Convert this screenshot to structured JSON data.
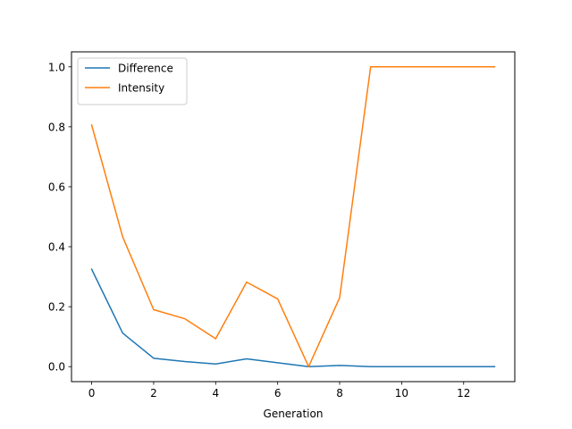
{
  "chart_data": {
    "type": "line",
    "title": "",
    "xlabel": "Generation",
    "ylabel": "",
    "x": [
      0,
      1,
      2,
      3,
      4,
      5,
      6,
      7,
      8,
      9,
      10,
      11,
      12,
      13
    ],
    "xlim": [
      -0.65,
      13.65
    ],
    "ylim": [
      -0.05,
      1.05
    ],
    "x_ticks": [
      0,
      2,
      4,
      6,
      8,
      10,
      12
    ],
    "y_ticks": [
      0.0,
      0.2,
      0.4,
      0.6,
      0.8,
      1.0
    ],
    "x_tick_labels": [
      "0",
      "2",
      "4",
      "6",
      "8",
      "10",
      "12"
    ],
    "y_tick_labels": [
      "0.0",
      "0.2",
      "0.4",
      "0.6",
      "0.8",
      "1.0"
    ],
    "grid": false,
    "legend_position": "top-left",
    "series": [
      {
        "name": "Difference",
        "color": "#1f77b4",
        "values": [
          0.325,
          0.112,
          0.028,
          0.017,
          0.009,
          0.026,
          0.013,
          0.0,
          0.004,
          0.0,
          0.0,
          0.0,
          0.0,
          0.0
        ]
      },
      {
        "name": "Intensity",
        "color": "#ff7f0e",
        "values": [
          0.806,
          0.433,
          0.19,
          0.16,
          0.093,
          0.282,
          0.226,
          0.0,
          0.23,
          1.0,
          1.0,
          1.0,
          1.0,
          1.0
        ]
      }
    ]
  }
}
